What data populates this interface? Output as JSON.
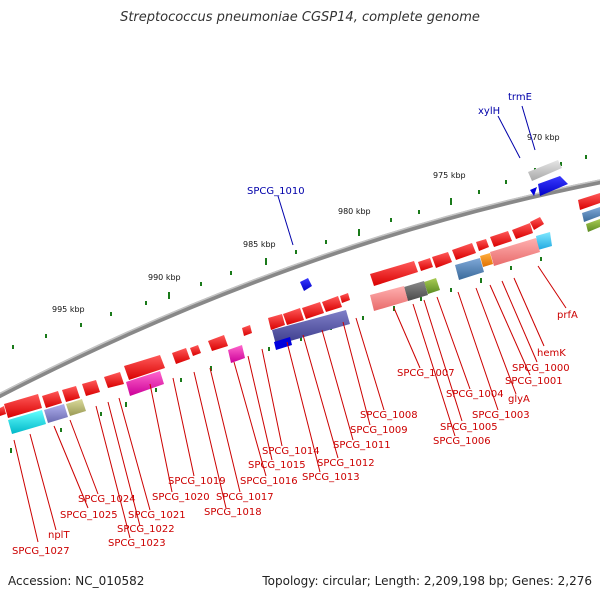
{
  "title": "Streptococcus pneumoniae CGSP14, complete genome",
  "footer": {
    "accession": "Accession: NC_010582",
    "summary": "Topology: circular; Length: 2,209,198 bp; Genes: 2,276"
  },
  "colors": {
    "backbone": "#8a8a8a",
    "label_red": "#cc0000",
    "label_blue": "#0000aa",
    "tick": "#1a7a1a"
  },
  "scale": {
    "ticks": [
      {
        "label": "970 kbp"
      },
      {
        "label": "975 kbp"
      },
      {
        "label": "980 kbp"
      },
      {
        "label": "985 kbp"
      },
      {
        "label": "990 kbp"
      },
      {
        "label": "995 kbp"
      }
    ]
  },
  "labels_top": [
    {
      "text": "trmE"
    },
    {
      "text": "xylH"
    },
    {
      "text": "SPCG_1010"
    }
  ],
  "labels_bottom": [
    {
      "text": "prfA"
    },
    {
      "text": "hemK"
    },
    {
      "text": "SPCG_1000"
    },
    {
      "text": "SPCG_1001"
    },
    {
      "text": "glyA"
    },
    {
      "text": "SPCG_1003"
    },
    {
      "text": "SPCG_1004"
    },
    {
      "text": "SPCG_1005"
    },
    {
      "text": "SPCG_1006"
    },
    {
      "text": "SPCG_1007"
    },
    {
      "text": "SPCG_1008"
    },
    {
      "text": "SPCG_1009"
    },
    {
      "text": "SPCG_1011"
    },
    {
      "text": "SPCG_1012"
    },
    {
      "text": "SPCG_1013"
    },
    {
      "text": "SPCG_1014"
    },
    {
      "text": "SPCG_1015"
    },
    {
      "text": "SPCG_1016"
    },
    {
      "text": "SPCG_1017"
    },
    {
      "text": "SPCG_1018"
    },
    {
      "text": "SPCG_1019"
    },
    {
      "text": "SPCG_1020"
    },
    {
      "text": "SPCG_1021"
    },
    {
      "text": "SPCG_1022"
    },
    {
      "text": "SPCG_1023"
    },
    {
      "text": "SPCG_1024"
    },
    {
      "text": "SPCG_1025"
    },
    {
      "text": "nplT"
    },
    {
      "text": "SPCG_1027"
    }
  ]
}
